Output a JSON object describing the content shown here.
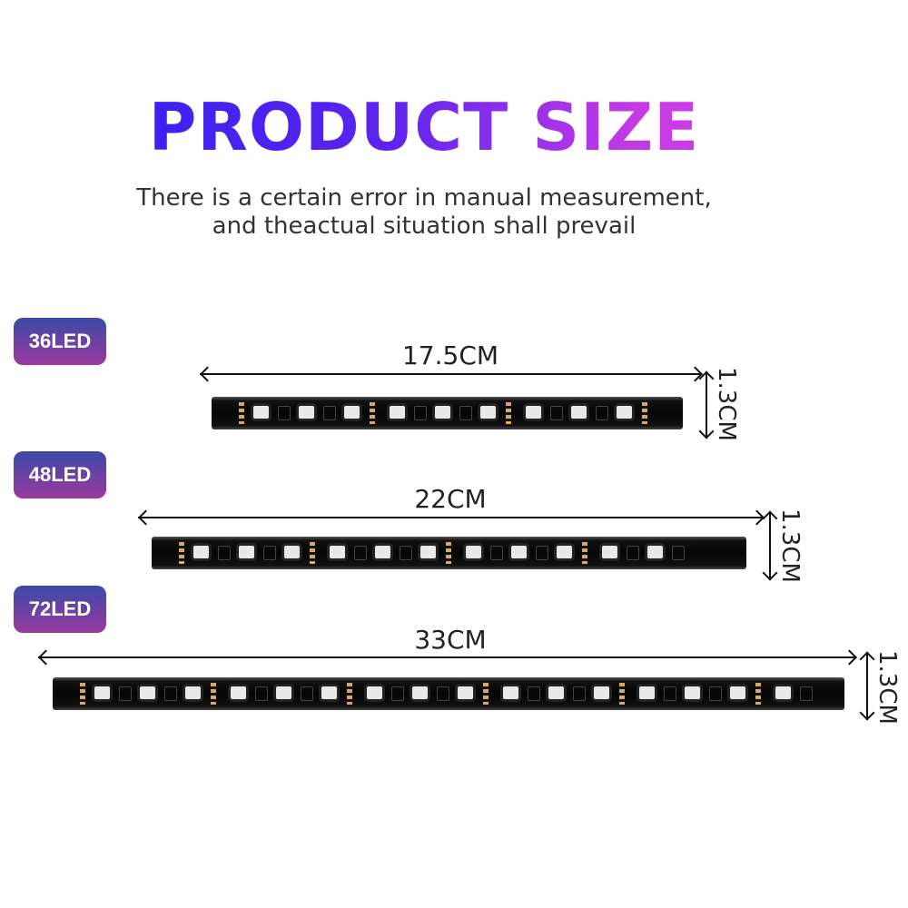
{
  "header": {
    "title": "PRODUCT SIZE",
    "subtitle_line1": "There is a certain error in manual measurement,",
    "subtitle_line2": "and theactual situation shall prevail"
  },
  "products": [
    {
      "badge": "36LED",
      "length": "17.5CM",
      "width": "1.3CM"
    },
    {
      "badge": "48LED",
      "length": "22CM",
      "width": "1.3CM"
    },
    {
      "badge": "72LED",
      "length": "33CM",
      "width": "1.3CM"
    }
  ],
  "colors": {
    "title_start": "#2a1ff0",
    "title_end": "#e040e8",
    "badge_top": "#3b4aa6",
    "badge_bottom": "#9a3aa0"
  }
}
